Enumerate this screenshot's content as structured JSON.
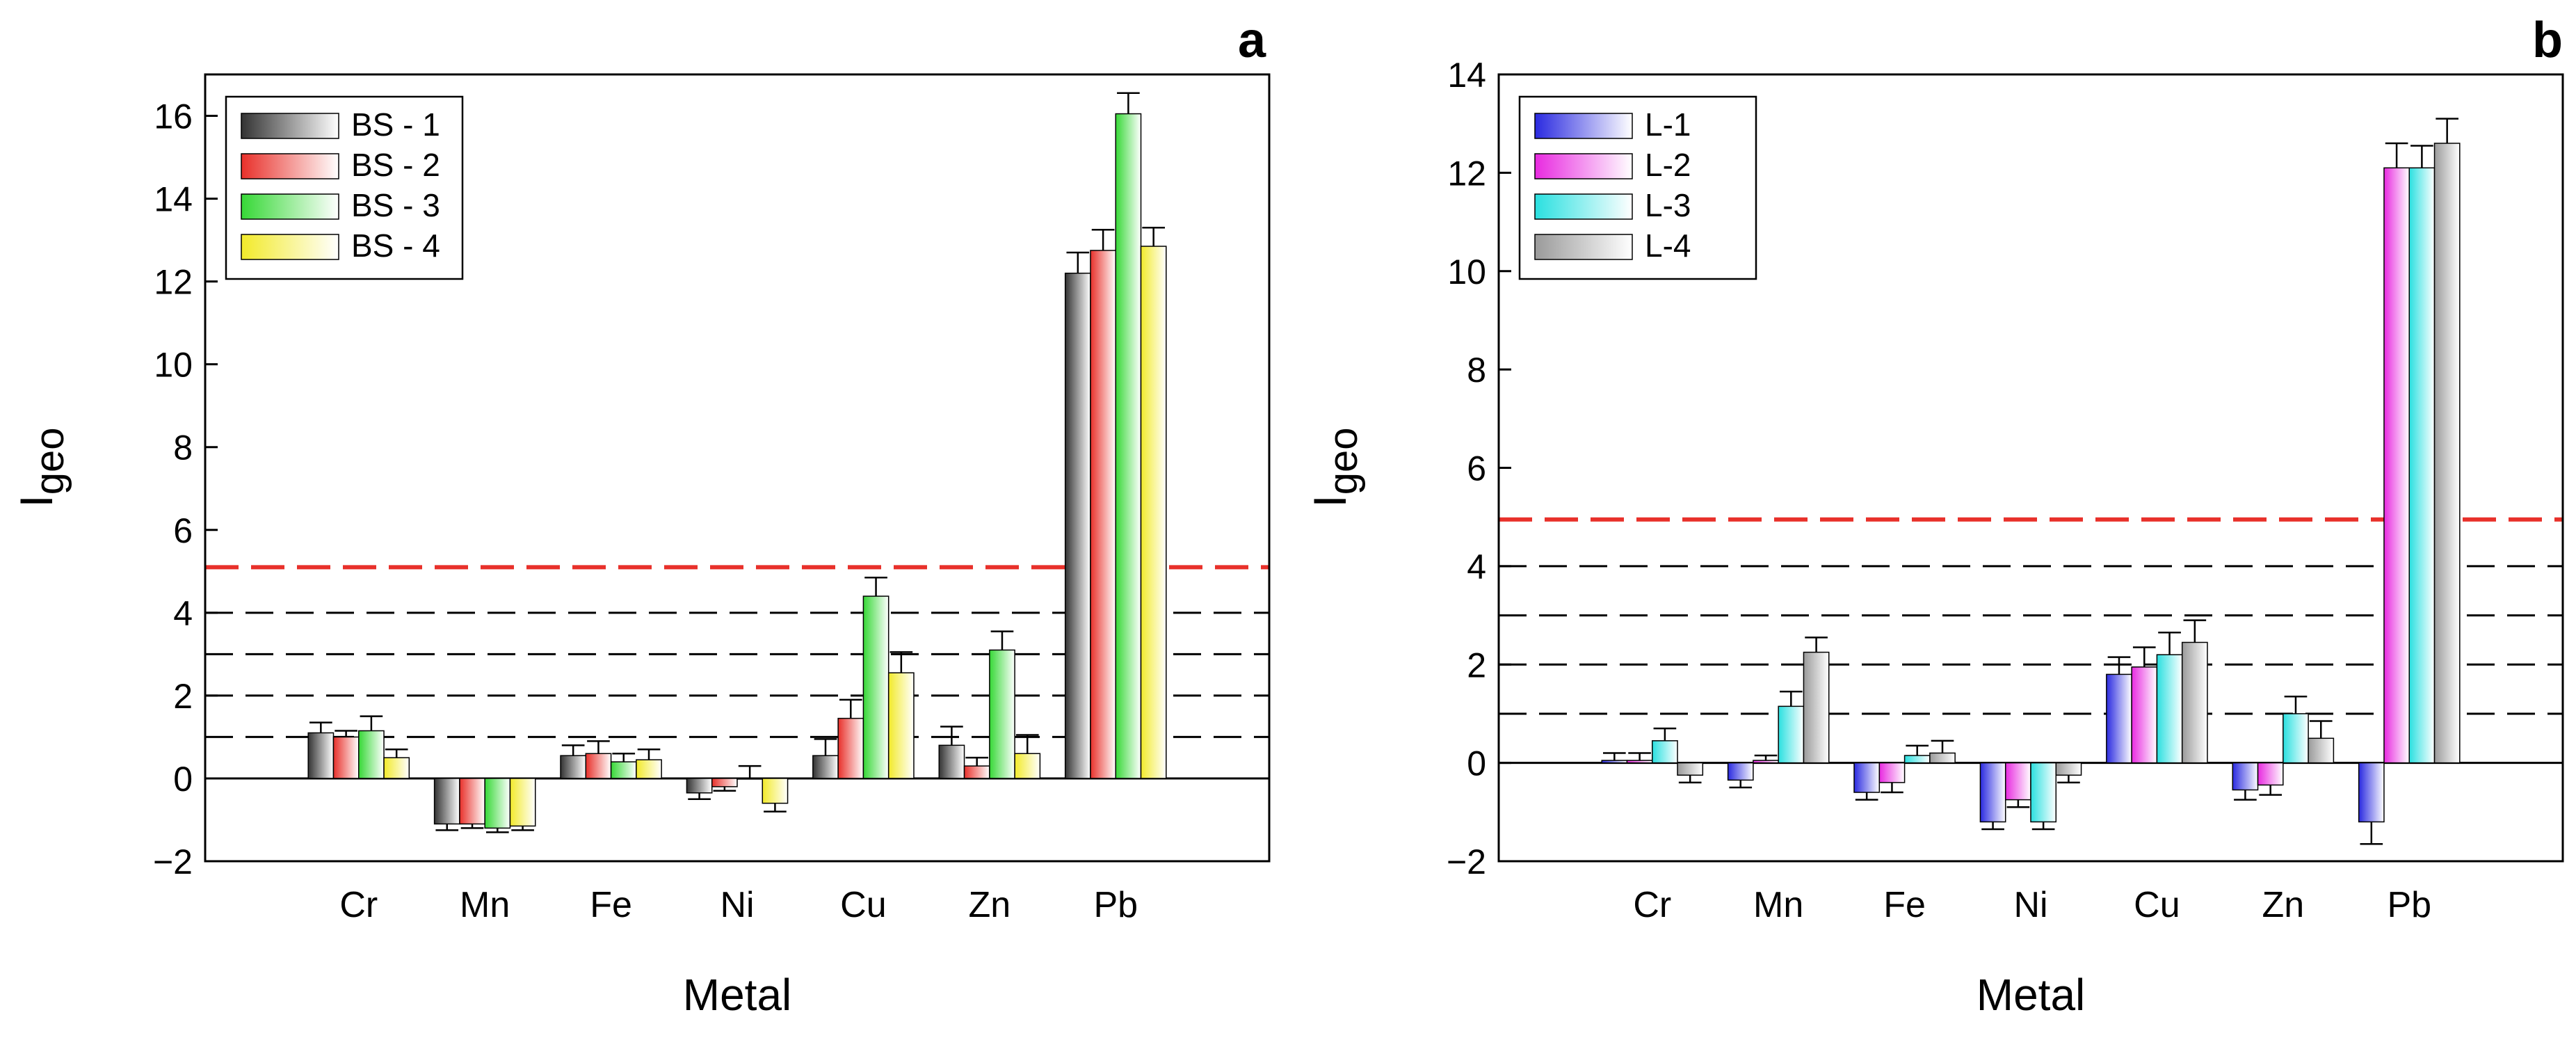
{
  "chart_data": [
    {
      "panel_label": "a",
      "type": "bar",
      "xlabel": "Metal",
      "ylabel_main": "I",
      "ylabel_sub": "geo",
      "ylim": [
        -2,
        17
      ],
      "yticks": [
        -2,
        0,
        2,
        4,
        6,
        8,
        10,
        12,
        14,
        16
      ],
      "ytick_labels": [
        "−2",
        "0",
        "2",
        "4",
        "6",
        "8",
        "10",
        "12",
        "14",
        "16"
      ],
      "categories": [
        "Cr",
        "Mn",
        "Fe",
        "Ni",
        "Cu",
        "Zn",
        "Pb"
      ],
      "series": [
        {
          "name": "BS - 1",
          "color": "#333333",
          "values": [
            1.1,
            -1.1,
            0.55,
            -0.35,
            0.55,
            0.8,
            12.2
          ],
          "errors": [
            0.25,
            0.15,
            0.25,
            0.15,
            0.4,
            0.45,
            0.5
          ]
        },
        {
          "name": "BS - 2",
          "color": "#e8302a",
          "values": [
            1.0,
            -1.1,
            0.6,
            -0.2,
            1.45,
            0.3,
            12.75
          ],
          "errors": [
            0.15,
            0.1,
            0.3,
            0.1,
            0.45,
            0.2,
            0.5
          ]
        },
        {
          "name": "BS - 3",
          "color": "#36d836",
          "values": [
            1.15,
            -1.2,
            0.4,
            0.0,
            4.4,
            3.1,
            16.05
          ],
          "errors": [
            0.35,
            0.1,
            0.2,
            0.3,
            0.45,
            0.45,
            0.5
          ]
        },
        {
          "name": "BS - 4",
          "color": "#f2ea2a",
          "values": [
            0.5,
            -1.15,
            0.45,
            -0.6,
            2.55,
            0.6,
            12.85
          ],
          "errors": [
            0.2,
            0.1,
            0.25,
            0.2,
            0.5,
            0.45,
            0.45
          ]
        }
      ],
      "reference_lines": [
        {
          "y": 5.1,
          "color": "#e8302a",
          "style": "dashed"
        },
        {
          "y": 4,
          "color": "#000000",
          "style": "dashed"
        },
        {
          "y": 3,
          "color": "#000000",
          "style": "dashed"
        },
        {
          "y": 2,
          "color": "#000000",
          "style": "dashed"
        },
        {
          "y": 1,
          "color": "#000000",
          "style": "dashed"
        },
        {
          "y": 0,
          "color": "#000000",
          "style": "solid"
        }
      ],
      "legend_position": "top-left"
    },
    {
      "panel_label": "b",
      "type": "bar",
      "xlabel": "Metal",
      "ylabel_main": "I",
      "ylabel_sub": "geo",
      "ylim": [
        -2,
        14
      ],
      "yticks": [
        -2,
        0,
        2,
        4,
        6,
        8,
        10,
        12,
        14
      ],
      "ytick_labels": [
        "−2",
        "0",
        "2",
        "4",
        "6",
        "8",
        "10",
        "12",
        "14"
      ],
      "categories": [
        "Cr",
        "Mn",
        "Fe",
        "Ni",
        "Cu",
        "Zn",
        "Pb"
      ],
      "series": [
        {
          "name": "L-1",
          "color": "#2a2ae0",
          "values": [
            0.05,
            -0.35,
            -0.6,
            -1.2,
            1.8,
            -0.55,
            -1.2
          ],
          "errors": [
            0.15,
            0.15,
            0.15,
            0.15,
            0.35,
            0.2,
            0.45
          ]
        },
        {
          "name": "L-2",
          "color": "#e82ae0",
          "values": [
            0.05,
            0.05,
            -0.4,
            -0.75,
            1.95,
            -0.45,
            12.1
          ],
          "errors": [
            0.15,
            0.1,
            0.2,
            0.15,
            0.4,
            0.2,
            0.5
          ]
        },
        {
          "name": "L-3",
          "color": "#2ae0e0",
          "values": [
            0.45,
            1.15,
            0.15,
            -1.2,
            2.2,
            1.0,
            12.1
          ],
          "errors": [
            0.25,
            0.3,
            0.2,
            0.15,
            0.45,
            0.35,
            0.45
          ]
        },
        {
          "name": "L-4",
          "color": "#9a9a9a",
          "values": [
            -0.25,
            2.25,
            0.2,
            -0.25,
            2.45,
            0.5,
            12.6
          ],
          "errors": [
            0.15,
            0.3,
            0.25,
            0.15,
            0.45,
            0.35,
            0.5
          ]
        }
      ],
      "reference_lines": [
        {
          "y": 4.95,
          "color": "#e8302a",
          "style": "dashed"
        },
        {
          "y": 4,
          "color": "#000000",
          "style": "dashed"
        },
        {
          "y": 3,
          "color": "#000000",
          "style": "dashed"
        },
        {
          "y": 2,
          "color": "#000000",
          "style": "dashed"
        },
        {
          "y": 1,
          "color": "#000000",
          "style": "dashed"
        },
        {
          "y": 0,
          "color": "#000000",
          "style": "solid"
        }
      ],
      "legend_position": "top-left"
    }
  ]
}
